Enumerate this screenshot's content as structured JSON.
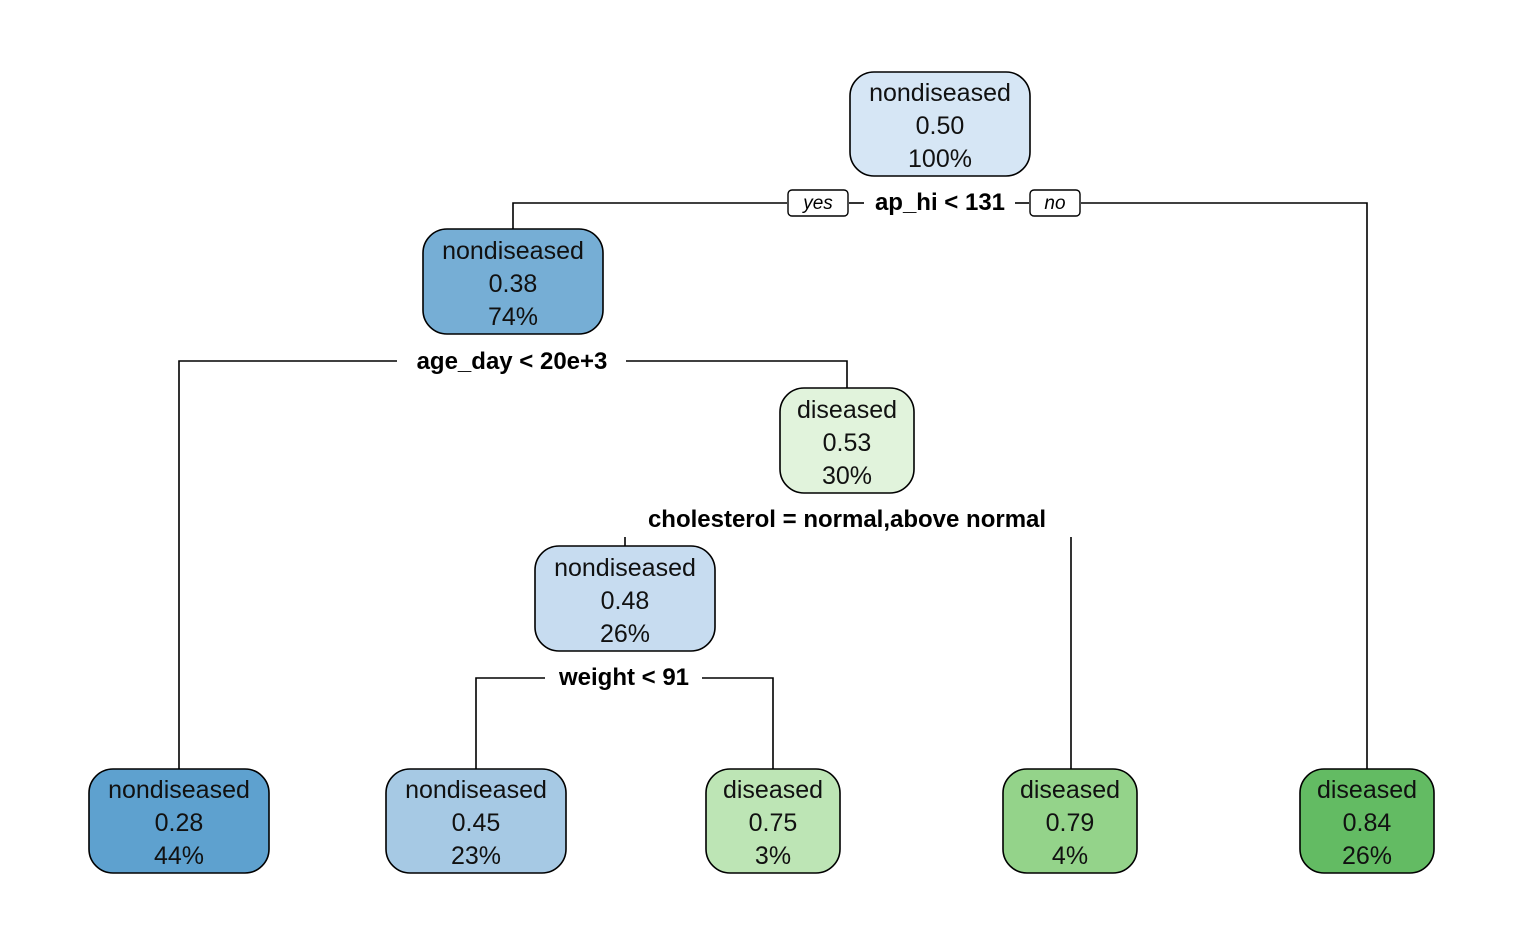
{
  "tree": {
    "nodes": [
      {
        "id": "root",
        "class": "nondiseased",
        "prob": "0.50",
        "pct": "100%",
        "color": "#d6e6f5"
      },
      {
        "id": "n2",
        "class": "nondiseased",
        "prob": "0.38",
        "pct": "74%",
        "color": "#76aed5"
      },
      {
        "id": "n5",
        "class": "diseased",
        "prob": "0.53",
        "pct": "30%",
        "color": "#e1f3dc"
      },
      {
        "id": "n10",
        "class": "nondiseased",
        "prob": "0.48",
        "pct": "26%",
        "color": "#c7dcf0"
      },
      {
        "id": "n4",
        "class": "nondiseased",
        "prob": "0.28",
        "pct": "44%",
        "color": "#5ea1cf"
      },
      {
        "id": "n20",
        "class": "nondiseased",
        "prob": "0.45",
        "pct": "23%",
        "color": "#a6c9e4"
      },
      {
        "id": "n21",
        "class": "diseased",
        "prob": "0.75",
        "pct": "3%",
        "color": "#bde5b5"
      },
      {
        "id": "n11",
        "class": "diseased",
        "prob": "0.79",
        "pct": "4%",
        "color": "#94d38a"
      },
      {
        "id": "n3",
        "class": "diseased",
        "prob": "0.84",
        "pct": "26%",
        "color": "#63bb63"
      }
    ],
    "splits": [
      {
        "id": "s_root",
        "label": "ap_hi < 131"
      },
      {
        "id": "s_n2",
        "label": "age_day < 20e+3"
      },
      {
        "id": "s_n5",
        "label": "cholesterol = normal,above normal"
      },
      {
        "id": "s_n10",
        "label": "weight < 91"
      }
    ],
    "branch_labels": {
      "yes": "yes",
      "no": "no"
    }
  }
}
